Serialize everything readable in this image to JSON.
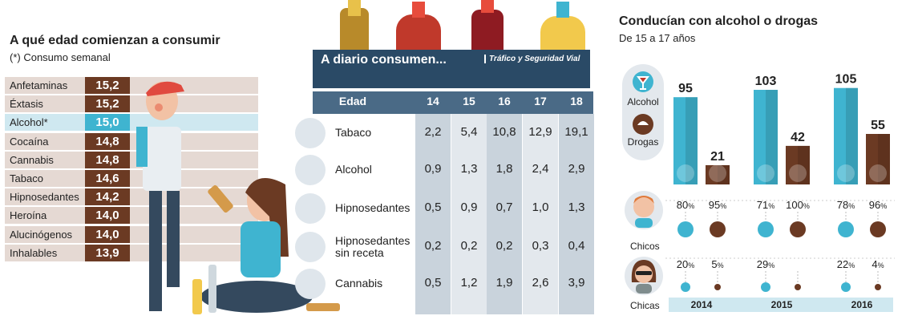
{
  "chart_data": [
    {
      "type": "bar",
      "title": "A qué edad comienzan a consumir",
      "subtitle": "(*) Consumo semanal",
      "categories": [
        "Anfetaminas",
        "Éxtasis",
        "Alcohol*",
        "Cocaína",
        "Cannabis",
        "Tabaco",
        "Hipnosedantes",
        "Heroína",
        "Alucinógenos",
        "Inhalables"
      ],
      "values": [
        "15,2",
        "15,2",
        "15,0",
        "14,8",
        "14,8",
        "14,6",
        "14,2",
        "14,0",
        "14,0",
        "13,9"
      ],
      "highlight": "Alcohol*",
      "colors": {
        "bar": "#6b3a23",
        "highlight": "#3fb4d0",
        "row_bg": "#e5d9d3",
        "row_bg_highlight": "#cfe8f0"
      }
    },
    {
      "type": "table",
      "title": "A diario consumen...",
      "source": "Tráfico y Seguridad Vial",
      "header_label": "Edad",
      "columns": [
        "14",
        "15",
        "16",
        "17",
        "18"
      ],
      "rows": [
        {
          "label": "Tabaco",
          "icon": "cigarette-pack-icon",
          "values": [
            "2,2",
            "5,4",
            "10,8",
            "12,9",
            "19,1"
          ]
        },
        {
          "label": "Alcohol",
          "icon": "cocktail-glass-icon",
          "values": [
            "0,9",
            "1,3",
            "1,8",
            "2,4",
            "2,9"
          ]
        },
        {
          "label": "Hipnosedantes",
          "icon": "pill-blister-icon",
          "values": [
            "0,5",
            "0,9",
            "0,7",
            "1,0",
            "1,3"
          ]
        },
        {
          "label": "Hipnosedantes\nsin receta",
          "label_line1": "Hipnosedantes",
          "label_line2": "sin receta",
          "icon": "pill-blister-icon",
          "values": [
            "0,2",
            "0,2",
            "0,2",
            "0,3",
            "0,4"
          ]
        },
        {
          "label": "Cannabis",
          "icon": "cannabis-leaf-icon",
          "values": [
            "0,5",
            "1,2",
            "1,9",
            "2,6",
            "3,9"
          ]
        }
      ],
      "colors": {
        "header": "#2a4a66",
        "subheader": "#4a6a86",
        "col_odd": "#c9d3dc",
        "col_even": "#e3e8ed"
      }
    },
    {
      "type": "bar",
      "title": "Conducían con alcohol o drogas",
      "subtitle": "De 15 a 17 años",
      "categories": [
        "2014",
        "2015",
        "2016"
      ],
      "series": [
        {
          "name": "Alcohol",
          "values": [
            95,
            103,
            105
          ],
          "color": "#3fb4d0"
        },
        {
          "name": "Drogas",
          "values": [
            21,
            42,
            55
          ],
          "color": "#6b3a23"
        }
      ],
      "breakdown": {
        "chicos": {
          "label": "Chicos",
          "alcohol": [
            "80",
            "71",
            "78"
          ],
          "drogas": [
            "95",
            "100",
            "96"
          ]
        },
        "chicas": {
          "label": "Chicas",
          "alcohol": [
            "20",
            "29",
            "22"
          ],
          "drogas": [
            "5",
            "",
            "4"
          ]
        }
      },
      "pct_symbol": "%",
      "ylim": [
        0,
        110
      ]
    }
  ]
}
